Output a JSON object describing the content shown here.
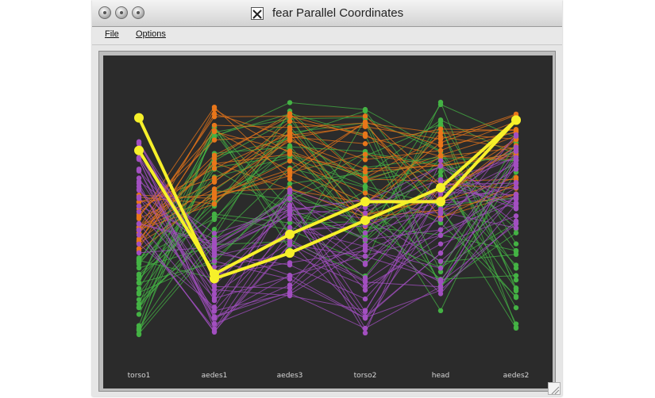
{
  "window": {
    "title": "fear Parallel Coordinates",
    "app_icon": "x11-icon"
  },
  "menu": {
    "file_label": "File",
    "options_label": "Options"
  },
  "plot": {
    "type": "parallel-coordinates",
    "background": "#2b2b2b",
    "axes": [
      "torso1",
      "aedes1",
      "aedes3",
      "torso2",
      "head",
      "aedes2"
    ],
    "colors": {
      "orange": "#e8761a",
      "green": "#44b244",
      "purple": "#a24fc0",
      "highlight": "#f6f02a"
    },
    "highlighted_lines": [
      [
        0.93,
        0.24,
        0.35,
        0.49,
        0.63,
        0.92
      ],
      [
        0.79,
        0.26,
        0.43,
        0.57,
        0.57,
        0.92
      ]
    ]
  }
}
